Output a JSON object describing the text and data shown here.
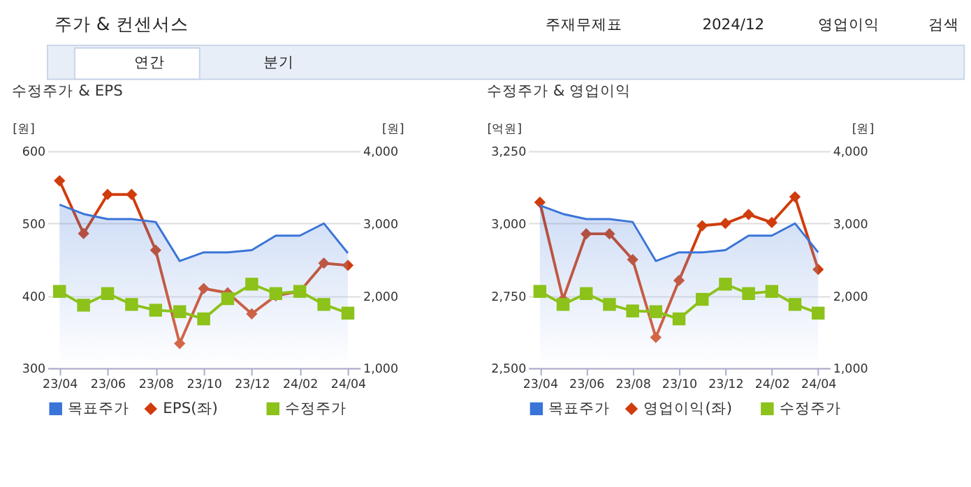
{
  "chart_data": [
    {
      "type": "line",
      "title": "수정주가 & EPS",
      "ylabel": "[원]",
      "y2label": "[원]",
      "annotations": [
        "주가 & 컨센서스",
        "주재무제표",
        "2024/12",
        "영업이익",
        "검색",
        "연간",
        "분기"
      ],
      "categories": [
        "23/04",
        null,
        "23/06",
        null,
        "23/08",
        null,
        "23/10",
        null,
        "23/12",
        null,
        "24/02",
        null,
        "24/04"
      ],
      "series": [
        {
          "name": "목표주가",
          "type": "area",
          "axis": "y2",
          "color": "#3a74d8",
          "marker": "none",
          "values": [
            3260,
            3130,
            3060,
            3060,
            3020,
            2480,
            2600,
            2600,
            2630,
            2830,
            2830,
            3000,
            2590
          ]
        },
        {
          "name": "EPS(좌)",
          "color": "#d03c0c",
          "marker": "diamond",
          "values": [
            559,
            486,
            540,
            540,
            463,
            334,
            410,
            404,
            375,
            400,
            406,
            445,
            442
          ]
        },
        {
          "name": "수정주가",
          "axis": "y2",
          "color": "#8cc21a",
          "marker": "square",
          "values": [
            2060,
            1870,
            2030,
            1880,
            1800,
            1780,
            1680,
            1960,
            2160,
            2030,
            2060,
            1880,
            1760
          ]
        }
      ],
      "ylim": [
        300,
        600
      ],
      "yticks": [
        300,
        400,
        500,
        600
      ],
      "y2lim": [
        1000,
        4000
      ],
      "y2ticks": [
        {
          "value": 1000,
          "label": "1,000"
        },
        {
          "value": 2000,
          "label": "2,000"
        },
        {
          "value": 3000,
          "label": "3,000"
        },
        {
          "value": 4000,
          "label": "4,000"
        }
      ],
      "grid": "y",
      "legend": "bottom"
    },
    {
      "type": "line",
      "title": "수정주가 & 영업이익",
      "ylabel": "[억원]",
      "y2label": "[원]",
      "categories": [
        "23/04",
        null,
        "23/06",
        null,
        "23/08",
        null,
        "23/10",
        null,
        "23/12",
        null,
        "24/02",
        null,
        "24/04"
      ],
      "series": [
        {
          "name": "목표주가",
          "type": "area",
          "axis": "y2",
          "color": "#3a74d8",
          "marker": "none",
          "values": [
            3250,
            3130,
            3060,
            3060,
            3020,
            2480,
            2600,
            2600,
            2630,
            2830,
            2830,
            3000,
            2600
          ]
        },
        {
          "name": "영업이익(좌)",
          "color": "#d03c0c",
          "marker": "diamond",
          "values": [
            3073,
            2738,
            2964,
            2964,
            2875,
            2606,
            2803,
            2992,
            3000,
            3031,
            3003,
            3092,
            2841
          ]
        },
        {
          "name": "수정주가",
          "axis": "y2",
          "color": "#8cc21a",
          "marker": "square",
          "values": [
            2060,
            1880,
            2030,
            1880,
            1790,
            1780,
            1680,
            1950,
            2160,
            2030,
            2060,
            1880,
            1760
          ]
        }
      ],
      "ylim": [
        2500,
        3250
      ],
      "yticks": [
        {
          "value": 2500,
          "label": "2,500"
        },
        {
          "value": 2750,
          "label": "2,750"
        },
        {
          "value": 3000,
          "label": "3,000"
        },
        {
          "value": 3250,
          "label": "3,250"
        }
      ],
      "y2lim": [
        1000,
        4000
      ],
      "y2ticks": [
        {
          "value": 1000,
          "label": "1,000"
        },
        {
          "value": 2000,
          "label": "2,000"
        },
        {
          "value": 3000,
          "label": "3,000"
        },
        {
          "value": 4000,
          "label": "4,000"
        }
      ],
      "grid": "y",
      "legend": "bottom"
    }
  ]
}
